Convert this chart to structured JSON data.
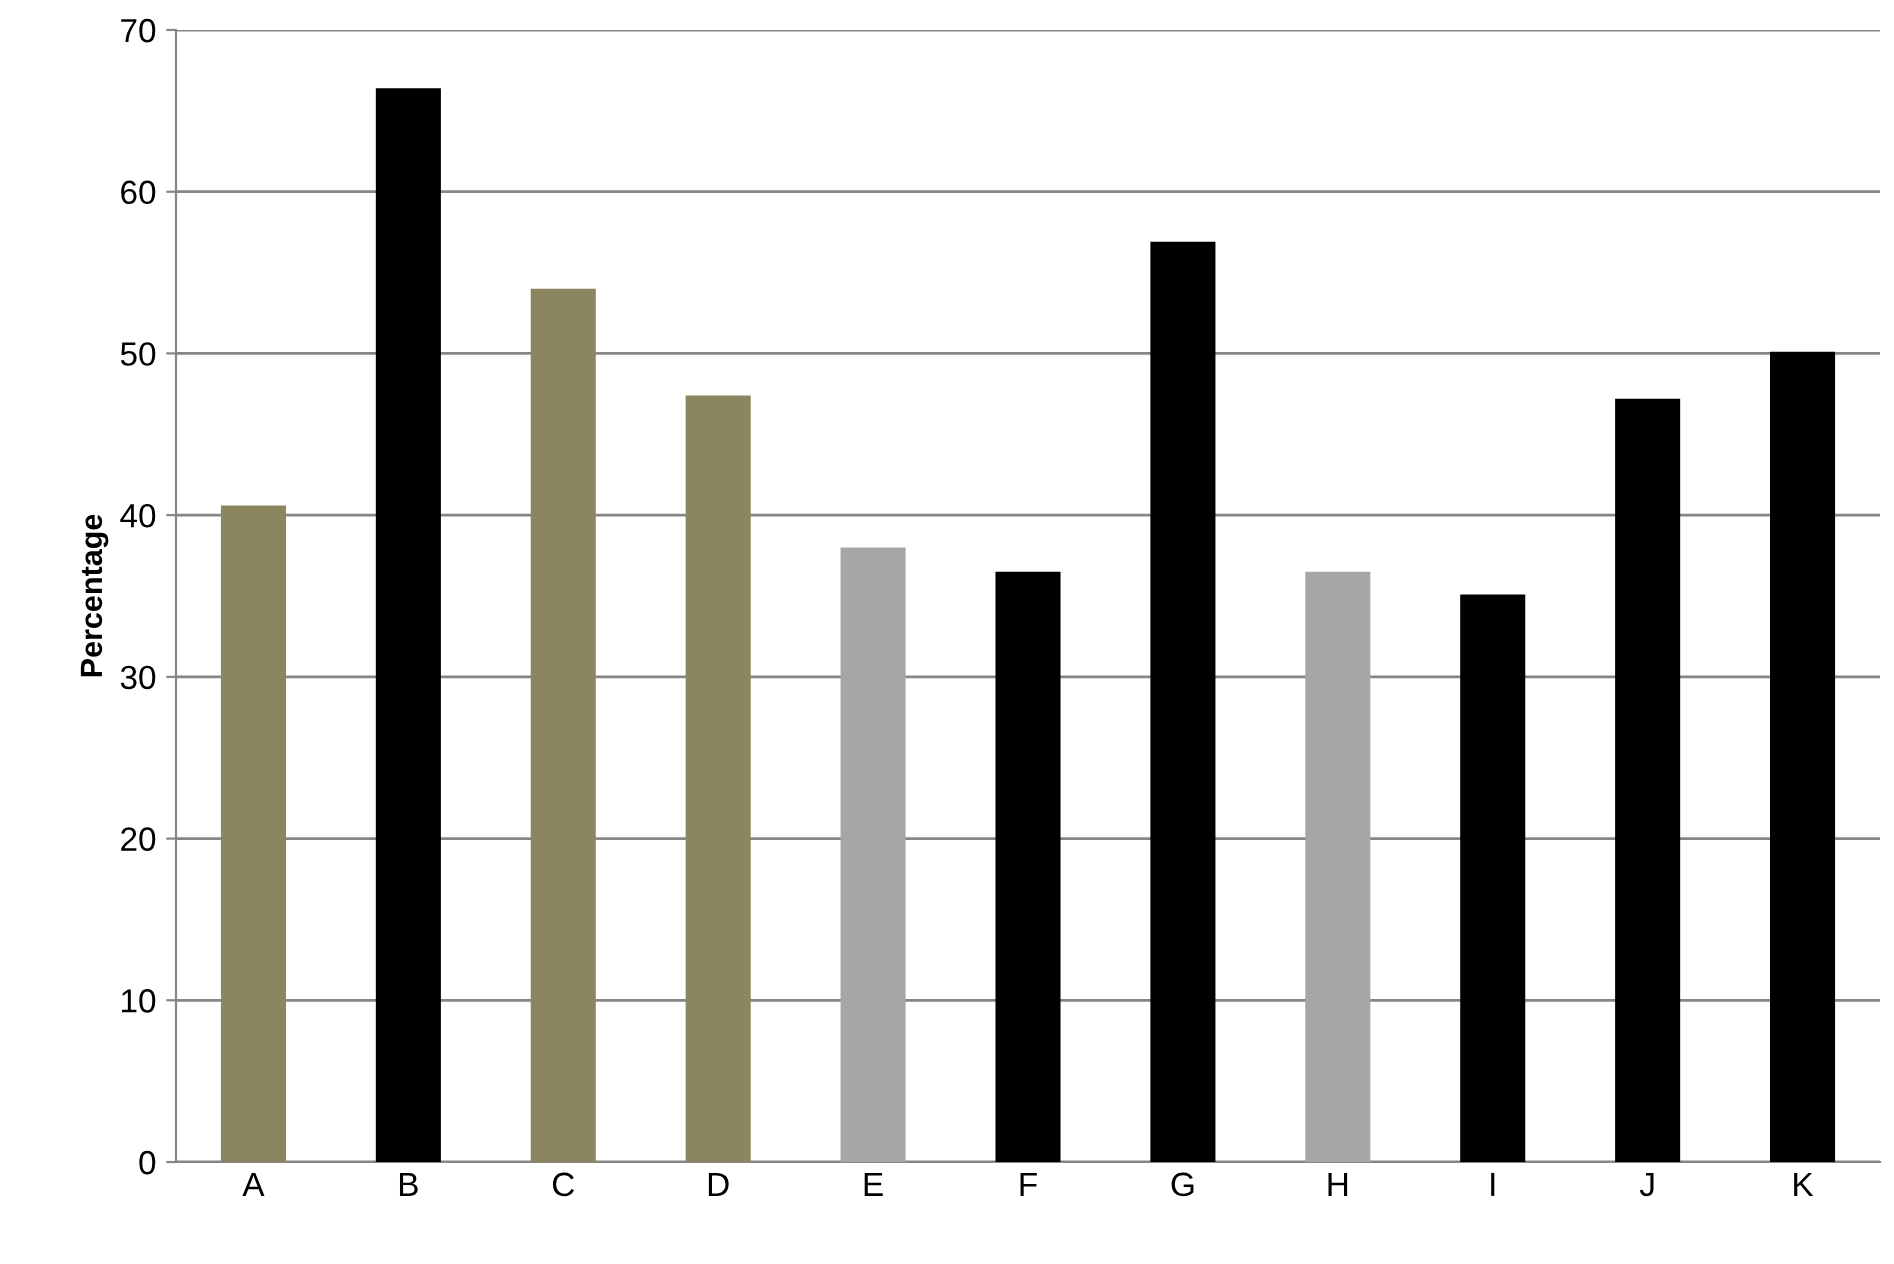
{
  "chart_data": {
    "type": "bar",
    "ylabel": "Percentage",
    "categories": [
      "A",
      "B",
      "C",
      "D",
      "E",
      "F",
      "G",
      "H",
      "I",
      "J",
      "K"
    ],
    "values": [
      40.6,
      66.4,
      54.0,
      47.4,
      38.0,
      36.5,
      56.9,
      36.5,
      35.1,
      47.2,
      50.1
    ],
    "colors": [
      "#8b8660",
      "#000000",
      "#8b8660",
      "#8b8660",
      "#a6a6a6",
      "#000000",
      "#000000",
      "#a6a6a6",
      "#000000",
      "#000000",
      "#000000"
    ],
    "ylim": [
      0,
      70
    ],
    "yticks": [
      0,
      10,
      20,
      30,
      40,
      50,
      60,
      70
    ],
    "grid": "y",
    "legend": false
  }
}
